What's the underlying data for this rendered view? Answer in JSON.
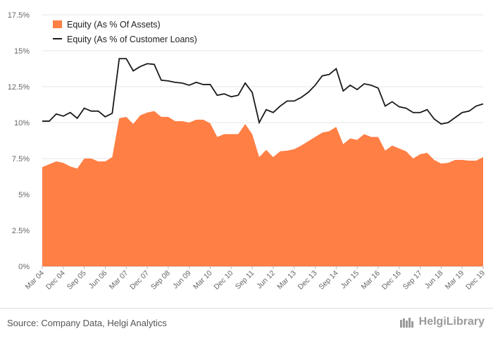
{
  "chart_data": {
    "type": "area",
    "legend_position": "top-left",
    "grid": true,
    "ylim": [
      0,
      17.5
    ],
    "y_ticks": [
      "0%",
      "2.5%",
      "5%",
      "7.5%",
      "10%",
      "12.5%",
      "15%",
      "17.5%"
    ],
    "x_tick_labels": [
      "Mar 04",
      "Dec 04",
      "Sep 05",
      "Jun 06",
      "Mar 07",
      "Dec 07",
      "Sep 08",
      "Jun 09",
      "Mar 10",
      "Dec 10",
      "Sep 11",
      "Jun 12",
      "Mar 13",
      "Dec 13",
      "Sep 14",
      "Jun 15",
      "Mar 16",
      "Dec 16",
      "Sep 17",
      "Jun 18",
      "Mar 19",
      "Dec 19"
    ],
    "series": [
      {
        "name": "Equity (As % Of Assets)",
        "kind": "area",
        "color": "#ff7f45",
        "values": [
          6.9,
          7.1,
          7.3,
          7.2,
          6.95,
          6.8,
          7.5,
          7.5,
          7.3,
          7.3,
          7.6,
          10.3,
          10.4,
          9.9,
          10.5,
          10.7,
          10.8,
          10.4,
          10.4,
          10.1,
          10.1,
          10.0,
          10.2,
          10.2,
          9.95,
          9.0,
          9.2,
          9.2,
          9.2,
          9.9,
          9.2,
          7.6,
          8.1,
          7.6,
          8.0,
          8.05,
          8.15,
          8.4,
          8.7,
          9.0,
          9.3,
          9.4,
          9.7,
          8.5,
          8.9,
          8.8,
          9.2,
          9.0,
          9.0,
          8.05,
          8.4,
          8.2,
          8.0,
          7.5,
          7.8,
          7.9,
          7.4,
          7.15,
          7.2,
          7.4,
          7.4,
          7.35,
          7.35,
          7.6
        ]
      },
      {
        "name": "Equity (As % of Customer Loans)",
        "kind": "line",
        "color": "#1a1a1a",
        "values": [
          10.1,
          10.1,
          10.6,
          10.45,
          10.7,
          10.3,
          11.0,
          10.8,
          10.8,
          10.4,
          10.65,
          14.45,
          14.45,
          13.6,
          13.9,
          14.1,
          14.05,
          12.95,
          12.9,
          12.8,
          12.75,
          12.6,
          12.8,
          12.65,
          12.65,
          11.9,
          12.0,
          11.8,
          11.9,
          12.75,
          12.1,
          10.0,
          10.9,
          10.7,
          11.15,
          11.5,
          11.5,
          11.75,
          12.1,
          12.6,
          13.25,
          13.35,
          13.75,
          12.2,
          12.6,
          12.3,
          12.7,
          12.6,
          12.4,
          11.15,
          11.45,
          11.1,
          11.0,
          10.7,
          10.7,
          10.9,
          10.25,
          9.9,
          10.0,
          10.35,
          10.7,
          10.8,
          11.15,
          11.3
        ]
      }
    ]
  },
  "footer": {
    "source": "Source: Company Data, Helgi Analytics",
    "brand": "HelgiLibrary"
  }
}
